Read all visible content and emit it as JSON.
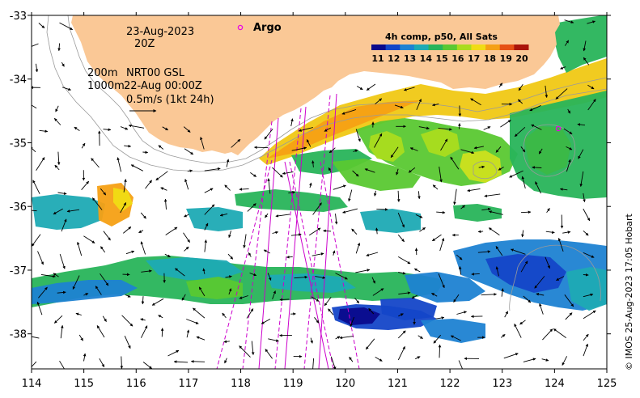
{
  "annotations": {
    "date": "23-Aug-2023",
    "time": "20Z",
    "legend_200m": "200m",
    "legend_1000m": "1000m",
    "product": "NRT00 GSL",
    "product_time": "22-Aug 00:00Z",
    "scale_arrow": "0.5m/s (1kt 24h)",
    "argo_label": "Argo"
  },
  "colorbar": {
    "title": "4h comp, p50, All Sats",
    "labels": [
      "11",
      "12",
      "13",
      "14",
      "15",
      "16",
      "17",
      "18",
      "19",
      "20"
    ],
    "colors": [
      "#0a0a8c",
      "#1446c8",
      "#1e82d2",
      "#1eaab4",
      "#28b45a",
      "#5ac832",
      "#aadc1e",
      "#f0dc14",
      "#f5a014",
      "#e65014",
      "#aa140a"
    ]
  },
  "axes": {
    "x_ticks": [
      "114",
      "115",
      "116",
      "117",
      "118",
      "119",
      "120",
      "121",
      "122",
      "123",
      "124",
      "125"
    ],
    "y_ticks": [
      "-33",
      "-34",
      "-35",
      "-36",
      "-37",
      "-38"
    ],
    "x_range": [
      114,
      125
    ],
    "y_range": [
      -38.55,
      -33
    ]
  },
  "land_color": "#fac896",
  "argo_color": "#e800e8",
  "track_color": "#cc00cc",
  "credit": "© IMOS 25-Aug-2023 17:05 Hobart"
}
